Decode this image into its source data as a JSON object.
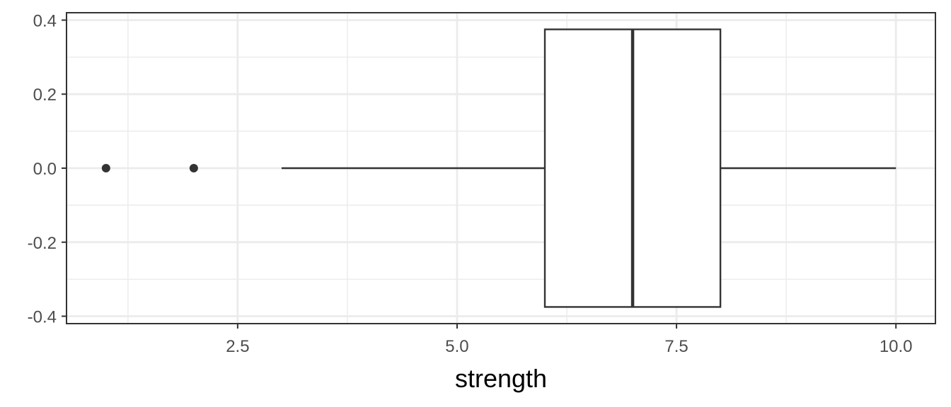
{
  "chart_data": {
    "type": "boxplot",
    "title": "",
    "xlabel": "strength",
    "ylabel": "",
    "xlim": [
      0.55,
      10.45
    ],
    "ylim": [
      -0.42,
      0.42
    ],
    "x_ticks": [
      2.5,
      5.0,
      7.5,
      10.0
    ],
    "x_tick_labels": [
      "2.5",
      "5.0",
      "7.5",
      "10.0"
    ],
    "x_minor_ticks": [
      1.25,
      3.75,
      6.25,
      8.75
    ],
    "y_ticks": [
      0.4,
      0.2,
      0.0,
      -0.2,
      -0.4
    ],
    "y_tick_labels": [
      "0.4",
      "0.2",
      "0.0",
      "-0.2",
      "-0.4"
    ],
    "y_minor_ticks": [
      0.3,
      0.1,
      -0.1,
      -0.3
    ],
    "grid": true,
    "box": {
      "whisker_low": 3,
      "q1": 6,
      "median": 7,
      "q3": 8,
      "whisker_high": 10,
      "y_center": 0.0,
      "y_low": -0.375,
      "y_high": 0.375
    },
    "outliers": [
      {
        "x": 1,
        "y": 0.0
      },
      {
        "x": 2,
        "y": 0.0
      }
    ],
    "colors": {
      "panel_border": "#333333",
      "grid": "#ebebeb",
      "box_line": "#333333",
      "box_fill": "#ffffff",
      "outlier": "#333333",
      "tick_label": "#4d4d4d",
      "axis_title": "#000000"
    }
  }
}
